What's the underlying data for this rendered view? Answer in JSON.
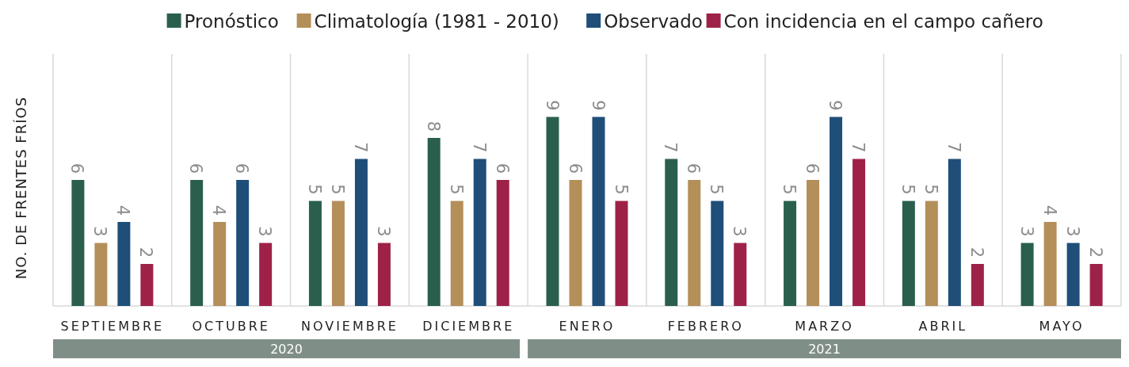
{
  "chart_data": {
    "type": "bar",
    "ylabel": "NO. DE FRENTES FRÍOS",
    "categories": [
      "SEPTIEMBRE",
      "OCTUBRE",
      "NOVIEMBRE",
      "DICIEMBRE",
      "ENERO",
      "FEBRERO",
      "MARZO",
      "ABRIL",
      "MAYO"
    ],
    "series": [
      {
        "name": "Pronóstico",
        "color": "#2a5f4e",
        "values": [
          6,
          6,
          5,
          8,
          9,
          7,
          5,
          5,
          3
        ]
      },
      {
        "name": "Climatología (1981 - 2010)",
        "color": "#b48f5a",
        "values": [
          3,
          4,
          5,
          5,
          6,
          6,
          6,
          5,
          4
        ]
      },
      {
        "name": "Observado",
        "color": "#1f4e79",
        "values": [
          4,
          6,
          7,
          7,
          9,
          5,
          9,
          7,
          3
        ]
      },
      {
        "name": "Con incidencia en el campo cañero",
        "color": "#9e2248",
        "values": [
          2,
          3,
          3,
          6,
          5,
          3,
          7,
          2,
          2
        ]
      }
    ],
    "ylim": [
      0,
      12
    ],
    "data_labels": true,
    "grid": "x",
    "legend": "top",
    "annotations": [
      "2020",
      "2021"
    ]
  }
}
